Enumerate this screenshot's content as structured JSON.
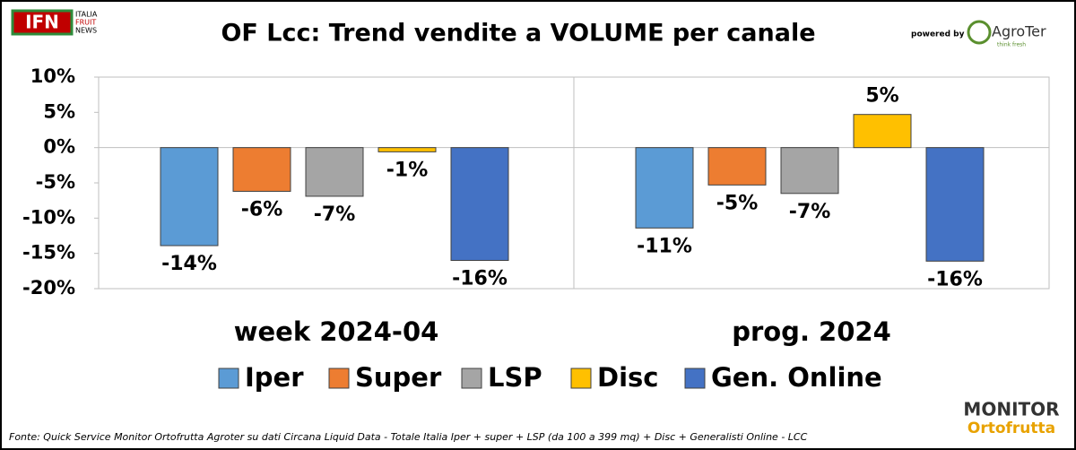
{
  "header": {
    "logo": "IFN",
    "logo_lines": [
      "ITALIA",
      "FRUIT",
      "NEWS"
    ],
    "powered_by": "powered by",
    "sponsor": "AgroTer",
    "sponsor_tagline": "think fresh"
  },
  "chart_data": {
    "type": "bar",
    "title": "OF Lcc: Trend vendite a VOLUME per canale",
    "categories": [
      "week 2024-04",
      "prog. 2024"
    ],
    "series": [
      {
        "name": "Iper",
        "color": "#5b9bd5",
        "values": [
          -13.9,
          -11.4
        ],
        "value_labels": [
          "-14%",
          "-11%"
        ]
      },
      {
        "name": "Super",
        "color": "#ed7d31",
        "values": [
          -6.2,
          -5.3
        ],
        "value_labels": [
          "-6%",
          "-5%"
        ]
      },
      {
        "name": "LSP",
        "color": "#a5a5a5",
        "values": [
          -6.9,
          -6.5
        ],
        "value_labels": [
          "-7%",
          "-7%"
        ]
      },
      {
        "name": "Disc",
        "color": "#ffc000",
        "values": [
          -0.6,
          4.7
        ],
        "value_labels": [
          "-1%",
          "5%"
        ]
      },
      {
        "name": "Gen. Online",
        "color": "#4472c4",
        "values": [
          -16.0,
          -16.1
        ],
        "value_labels": [
          "-16%",
          "-16%"
        ]
      }
    ],
    "ylim": [
      -20,
      10
    ],
    "yticks": [
      {
        "value": -20,
        "label": "-20%"
      },
      {
        "value": -15,
        "label": "-15%"
      },
      {
        "value": -10,
        "label": "-10%"
      },
      {
        "value": -5,
        "label": "-5%"
      },
      {
        "value": 0,
        "label": "0%"
      },
      {
        "value": 5,
        "label": "5%"
      },
      {
        "value": 10,
        "label": "10%"
      }
    ],
    "grid": false,
    "legend": "bottom"
  },
  "footer": {
    "source": "Fonte: Quick Service Monitor Ortofrutta Agroter su dati Circana Liquid Data - Totale Italia Iper + super + LSP (da 100 a 399 mq) + Disc + Generalisti Online - LCC",
    "brand_top": "MONITOR",
    "brand_bottom": "Ortofrutta"
  }
}
